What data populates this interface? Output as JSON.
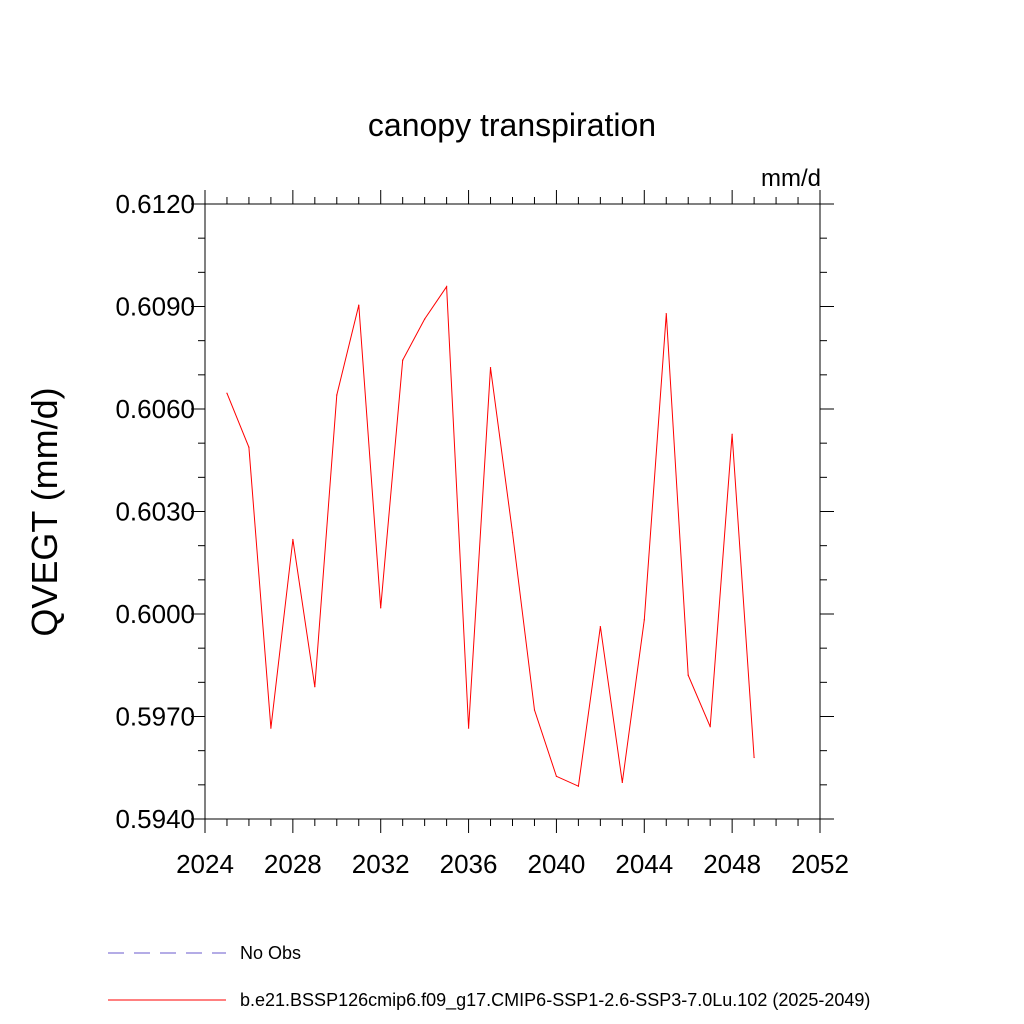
{
  "chart_data": {
    "type": "line",
    "title": "canopy transpiration",
    "units": "mm/d",
    "xlabel": "",
    "ylabel": "QVEGT  (mm/d)",
    "xlim": [
      2024,
      2052
    ],
    "ylim": [
      0.594,
      0.612
    ],
    "x_ticks": [
      2024,
      2028,
      2032,
      2036,
      2040,
      2044,
      2048,
      2052
    ],
    "x_tick_labels": [
      "2024",
      "2028",
      "2032",
      "2036",
      "2040",
      "2044",
      "2048",
      "2052"
    ],
    "y_ticks": [
      0.594,
      0.597,
      0.6,
      0.603,
      0.606,
      0.609,
      0.612
    ],
    "y_tick_labels": [
      "0.5940",
      "0.5970",
      "0.6000",
      "0.6030",
      "0.6060",
      "0.6090",
      "0.6120"
    ],
    "grid": false,
    "legend_position": "bottom",
    "series": [
      {
        "name": "No Obs",
        "color": "#6a5acd",
        "dash": "dashed",
        "x": [],
        "y": []
      },
      {
        "name": "b.e21.BSSP126cmip6.f09_g17.CMIP6-SSP1-2.6-SSP3-7.0Lu.102 (2025-2049)",
        "color": "#ff0000",
        "dash": "solid",
        "x": [
          2025,
          2026,
          2027,
          2028,
          2029,
          2030,
          2031,
          2032,
          2033,
          2034,
          2035,
          2036,
          2037,
          2038,
          2039,
          2040,
          2041,
          2042,
          2043,
          2044,
          2045,
          2046,
          2047,
          2048,
          2049
        ],
        "y": [
          0.60646,
          0.60488,
          0.59666,
          0.60218,
          0.59787,
          0.60641,
          0.60904,
          0.60018,
          0.60743,
          0.60863,
          0.60958,
          0.59666,
          0.60721,
          0.60238,
          0.59719,
          0.59525,
          0.59496,
          0.59963,
          0.59507,
          0.59983,
          0.60879,
          0.59821,
          0.5967,
          0.60526,
          0.5958
        ]
      }
    ]
  }
}
